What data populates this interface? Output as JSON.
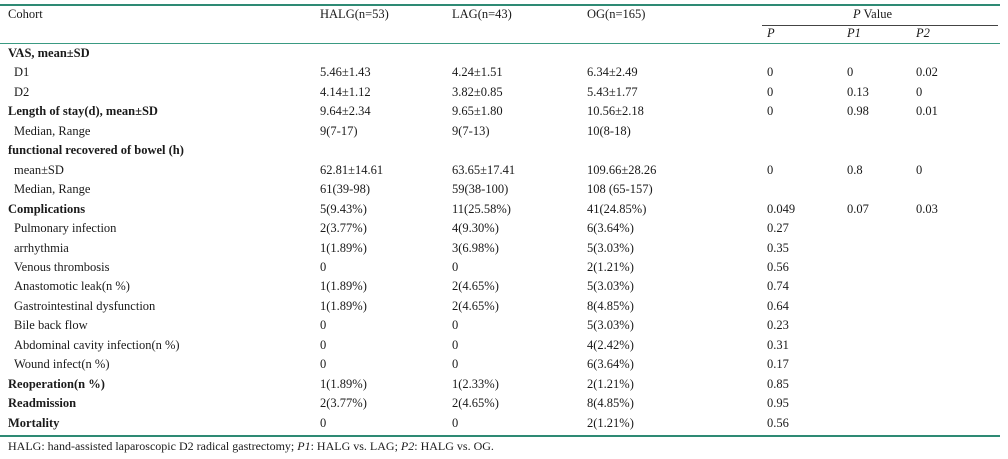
{
  "header": {
    "cohort": "Cohort",
    "halg": "HALG(n=53)",
    "lag": "LAG(n=43)",
    "og": "OG(n=165)",
    "pvalue_group": "P Value",
    "p": "P",
    "p1": "P1",
    "p2": "P2"
  },
  "rows": [
    {
      "label": "VAS, mean±SD",
      "bold": true,
      "sub": false,
      "halg": "",
      "lag": "",
      "og": "",
      "p": "",
      "p1": "",
      "p2": ""
    },
    {
      "label": "D1",
      "bold": false,
      "sub": true,
      "halg": "5.46±1.43",
      "lag": "4.24±1.51",
      "og": "6.34±2.49",
      "p": "0",
      "p1": "0",
      "p2": "0.02"
    },
    {
      "label": "D2",
      "bold": false,
      "sub": true,
      "halg": "4.14±1.12",
      "lag": "3.82±0.85",
      "og": "5.43±1.77",
      "p": "0",
      "p1": "0.13",
      "p2": "0"
    },
    {
      "label": "Length of stay(d), mean±SD",
      "bold": true,
      "sub": false,
      "halg": "9.64±2.34",
      "lag": "9.65±1.80",
      "og": "10.56±2.18",
      "p": "0",
      "p1": "0.98",
      "p2": "0.01"
    },
    {
      "label": "Median, Range",
      "bold": false,
      "sub": true,
      "halg": "9(7-17)",
      "lag": "9(7-13)",
      "og": "10(8-18)",
      "p": "",
      "p1": "",
      "p2": ""
    },
    {
      "label": "functional recovered of bowel (h)",
      "bold": true,
      "sub": false,
      "halg": "",
      "lag": "",
      "og": "",
      "p": "",
      "p1": "",
      "p2": ""
    },
    {
      "label": "mean±SD",
      "bold": false,
      "sub": true,
      "halg": "62.81±14.61",
      "lag": "63.65±17.41",
      "og": "109.66±28.26",
      "p": "0",
      "p1": "0.8",
      "p2": "0"
    },
    {
      "label": "Median, Range",
      "bold": false,
      "sub": true,
      "halg": "61(39-98)",
      "lag": "59(38-100)",
      "og": "108 (65-157)",
      "p": "",
      "p1": "",
      "p2": ""
    },
    {
      "label": "Complications",
      "bold": true,
      "sub": false,
      "halg": "5(9.43%)",
      "lag": "11(25.58%)",
      "og": "41(24.85%)",
      "p": "0.049",
      "p1": "0.07",
      "p2": "0.03"
    },
    {
      "label": "Pulmonary infection",
      "bold": false,
      "sub": true,
      "halg": "2(3.77%)",
      "lag": "4(9.30%)",
      "og": "6(3.64%)",
      "p": "0.27",
      "p1": "",
      "p2": ""
    },
    {
      "label": "arrhythmia",
      "bold": false,
      "sub": true,
      "halg": "1(1.89%)",
      "lag": "3(6.98%)",
      "og": "5(3.03%)",
      "p": "0.35",
      "p1": "",
      "p2": ""
    },
    {
      "label": "Venous thrombosis",
      "bold": false,
      "sub": true,
      "halg": "0",
      "lag": "0",
      "og": "2(1.21%)",
      "p": "0.56",
      "p1": "",
      "p2": ""
    },
    {
      "label": "Anastomotic leak(n %)",
      "bold": false,
      "sub": true,
      "halg": "1(1.89%)",
      "lag": "2(4.65%)",
      "og": "5(3.03%)",
      "p": "0.74",
      "p1": "",
      "p2": ""
    },
    {
      "label": "Gastrointestinal dysfunction",
      "bold": false,
      "sub": true,
      "halg": "1(1.89%)",
      "lag": "2(4.65%)",
      "og": "8(4.85%)",
      "p": "0.64",
      "p1": "",
      "p2": ""
    },
    {
      "label": "Bile back flow",
      "bold": false,
      "sub": true,
      "halg": "0",
      "lag": "0",
      "og": "5(3.03%)",
      "p": "0.23",
      "p1": "",
      "p2": ""
    },
    {
      "label": "Abdominal cavity infection(n %)",
      "bold": false,
      "sub": true,
      "halg": "0",
      "lag": "0",
      "og": "4(2.42%)",
      "p": "0.31",
      "p1": "",
      "p2": ""
    },
    {
      "label": "Wound infect(n %)",
      "bold": false,
      "sub": true,
      "halg": "0",
      "lag": "0",
      "og": "6(3.64%)",
      "p": "0.17",
      "p1": "",
      "p2": ""
    },
    {
      "label": "Reoperation(n %)",
      "bold": true,
      "sub": false,
      "halg": "1(1.89%)",
      "lag": "1(2.33%)",
      "og": "2(1.21%)",
      "p": "0.85",
      "p1": "",
      "p2": ""
    },
    {
      "label": "Readmission",
      "bold": true,
      "sub": false,
      "halg": "2(3.77%)",
      "lag": "2(4.65%)",
      "og": "8(4.85%)",
      "p": "0.95",
      "p1": "",
      "p2": ""
    },
    {
      "label": "Mortality",
      "bold": true,
      "sub": false,
      "halg": "0",
      "lag": "0",
      "og": "2(1.21%)",
      "p": "0.56",
      "p1": "",
      "p2": ""
    }
  ],
  "footnote": {
    "part1": "HALG: hand-assisted laparoscopic D2 radical gastrectomy; ",
    "p1_italic": "P1",
    "part2": ": HALG vs. LAG; ",
    "p2_italic": "P2",
    "part3": ": HALG vs. OG."
  }
}
